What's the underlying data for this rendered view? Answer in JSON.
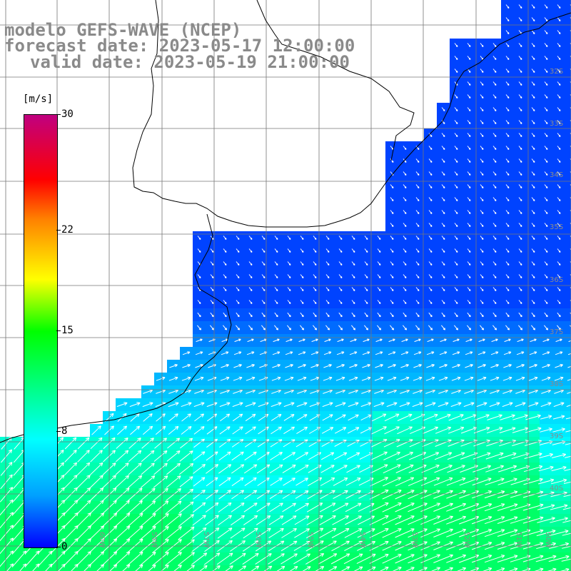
{
  "title": {
    "model": "modelo GEFS-WAVE (NCEP)",
    "forecast": "forecast date: 2023-05-17 12:00:00",
    "valid": "valid date: 2023-05-19 21:00:00"
  },
  "colorbar": {
    "unit": "[m/s]",
    "min": 0,
    "max": 30,
    "ticks": [
      "0",
      "8",
      "15",
      "22",
      "30"
    ],
    "stops": [
      "#0000ff",
      "#00a0ff",
      "#00ffff",
      "#00ff00",
      "#ffff00",
      "#ff8000",
      "#ff0000",
      "#c00080"
    ]
  },
  "map": {
    "lon_range": [
      -65,
      -43
    ],
    "lat_range": [
      -42,
      -31
    ],
    "lat_labels": [
      "32S",
      "33S",
      "34S",
      "35S",
      "36S",
      "37S",
      "38S",
      "39S",
      "40S"
    ],
    "lon_labels": [
      "63W",
      "61W",
      "60W",
      "59W",
      "57W",
      "56W",
      "55W",
      "54W",
      "53W",
      "52W",
      "51W",
      "50W"
    ],
    "field": "wind speed (m/s)",
    "vector_color": "#ffffff",
    "land_color": "#ffffff",
    "coast_color": "#000000"
  }
}
